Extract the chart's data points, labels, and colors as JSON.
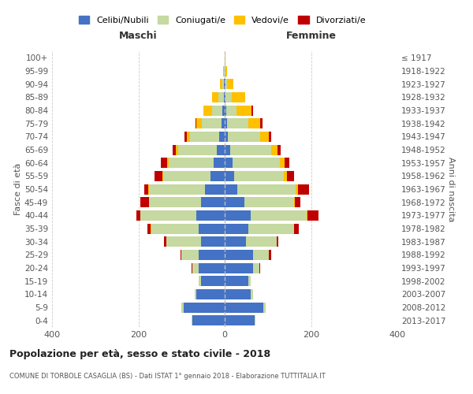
{
  "age_groups": [
    "0-4",
    "5-9",
    "10-14",
    "15-19",
    "20-24",
    "25-29",
    "30-34",
    "35-39",
    "40-44",
    "45-49",
    "50-54",
    "55-59",
    "60-64",
    "65-69",
    "70-74",
    "75-79",
    "80-84",
    "85-89",
    "90-94",
    "95-99",
    "100+"
  ],
  "birth_years": [
    "2013-2017",
    "2008-2012",
    "2003-2007",
    "1998-2002",
    "1993-1997",
    "1988-1992",
    "1983-1987",
    "1978-1982",
    "1973-1977",
    "1968-1972",
    "1963-1967",
    "1958-1962",
    "1953-1957",
    "1948-1952",
    "1943-1947",
    "1938-1942",
    "1933-1937",
    "1928-1932",
    "1923-1927",
    "1918-1922",
    "≤ 1917"
  ],
  "colors": {
    "celibi": "#4472C4",
    "coniugati": "#c5d9a0",
    "vedovi": "#ffc000",
    "divorziati": "#c00000"
  },
  "maschi": {
    "celibi": [
      75,
      95,
      65,
      55,
      60,
      60,
      55,
      60,
      65,
      55,
      45,
      32,
      25,
      18,
      12,
      8,
      5,
      2,
      1,
      0,
      0
    ],
    "coniugati": [
      2,
      5,
      5,
      5,
      15,
      40,
      80,
      110,
      130,
      120,
      130,
      110,
      105,
      90,
      68,
      45,
      25,
      12,
      4,
      1,
      0
    ],
    "vedovi": [
      0,
      0,
      0,
      0,
      0,
      0,
      0,
      1,
      1,
      1,
      2,
      2,
      3,
      5,
      8,
      12,
      20,
      15,
      6,
      2,
      0
    ],
    "divorziati": [
      0,
      0,
      0,
      0,
      2,
      2,
      5,
      8,
      8,
      20,
      10,
      18,
      15,
      8,
      5,
      2,
      0,
      0,
      0,
      0,
      0
    ]
  },
  "femmine": {
    "celibi": [
      70,
      90,
      60,
      55,
      65,
      65,
      50,
      55,
      60,
      45,
      30,
      22,
      18,
      12,
      8,
      5,
      3,
      2,
      1,
      0,
      0
    ],
    "coniugati": [
      2,
      5,
      5,
      5,
      15,
      38,
      70,
      105,
      130,
      115,
      135,
      115,
      110,
      95,
      75,
      50,
      25,
      15,
      5,
      2,
      0
    ],
    "vedovi": [
      0,
      0,
      0,
      0,
      0,
      0,
      0,
      1,
      2,
      3,
      5,
      8,
      10,
      15,
      20,
      28,
      35,
      30,
      15,
      4,
      1
    ],
    "divorziati": [
      0,
      0,
      0,
      0,
      2,
      5,
      5,
      10,
      25,
      12,
      25,
      15,
      12,
      8,
      5,
      5,
      2,
      1,
      0,
      0,
      0
    ]
  },
  "title": "Popolazione per età, sesso e stato civile - 2018",
  "subtitle": "COMUNE DI TORBOLE CASAGLIA (BS) - Dati ISTAT 1° gennaio 2018 - Elaborazione TUTTITALIA.IT",
  "xlabel_left": "Maschi",
  "xlabel_right": "Femmine",
  "ylabel_left": "Fasce di età",
  "ylabel_right": "Anni di nascita",
  "xlim": 400,
  "legend_labels": [
    "Celibi/Nubili",
    "Coniugati/e",
    "Vedovi/e",
    "Divorziati/e"
  ],
  "bg_color": "#ffffff",
  "grid_color": "#cccccc"
}
